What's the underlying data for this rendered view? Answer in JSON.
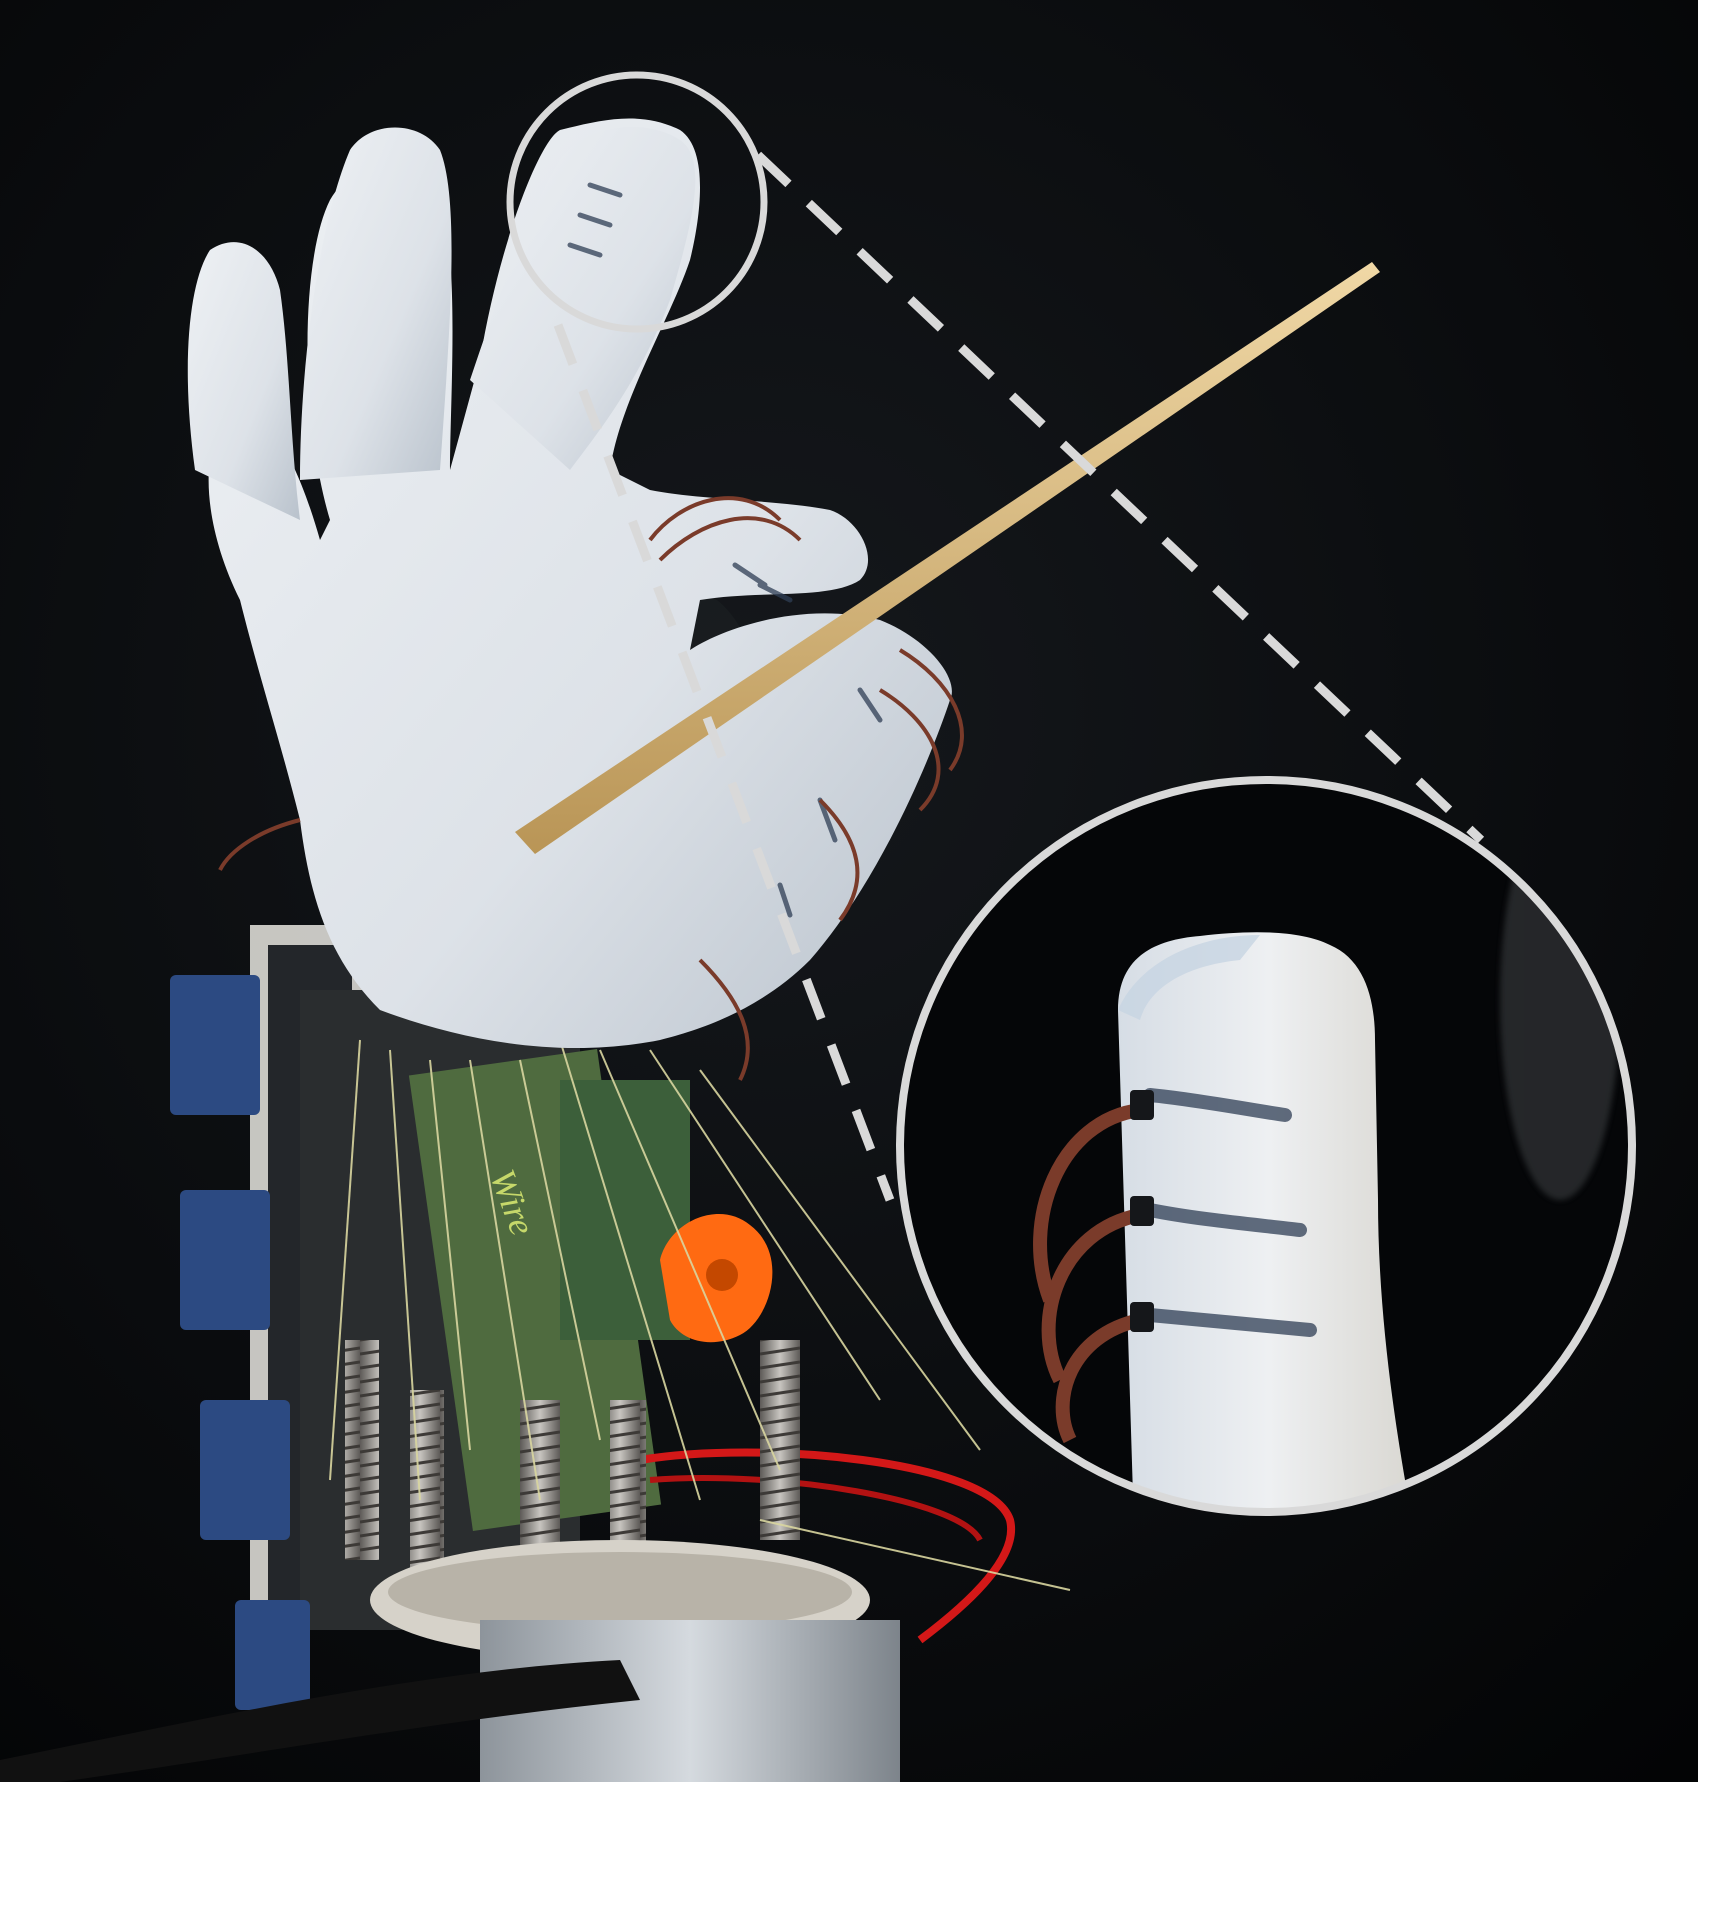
{
  "figure": {
    "subject": "robotic-hand-holding-chopstick",
    "zoom_inset": "fingertip-closeup",
    "colors": {
      "background": "#050608",
      "page": "#ffffff",
      "skin": "#dfe4ea",
      "skin_shadow": "#b9c2cc",
      "marking": "#2f3e55",
      "wire": "#7a3b2a",
      "chopstick": "#d9bd86",
      "orange_part": "#ff6a12",
      "red_wire": "#d41818",
      "board": "#2c4a82",
      "spring": "#8d8a86",
      "callout": "#d9d9d9"
    }
  },
  "board_labels": {
    "text": "Wire"
  }
}
